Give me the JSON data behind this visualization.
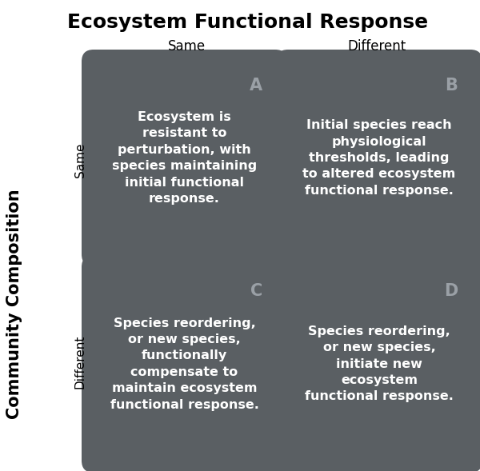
{
  "title": "Ecosystem Functional Response",
  "col_labels": [
    "Same",
    "Different"
  ],
  "row_labels": [
    "Same",
    "Different"
  ],
  "y_axis_label": "Community Composition",
  "cell_labels": [
    "A",
    "B",
    "C",
    "D"
  ],
  "cell_texts": [
    "Ecosystem is\nresistant to\nperturbation, with\nspecies maintaining\ninitial functional\nresponse.",
    "Initial species reach\nphysiological\nthresholds, leading\nto altered ecosystem\nfunctional response.",
    "Species reordering,\nor new species,\nfunctionally\ncompensate to\nmaintain ecosystem\nfunctional response.",
    "Species reordering,\nor new species,\ninitiate new\necosystem\nfunctional response."
  ],
  "cell_color": "#5a5f63",
  "cell_label_color": "#9aa0a6",
  "text_color": "#ffffff",
  "title_color": "#000000",
  "background_color": "#ffffff",
  "title_fontsize": 18,
  "col_label_fontsize": 12,
  "row_label_fontsize": 11,
  "cell_label_fontsize": 15,
  "cell_text_fontsize": 11.5,
  "y_axis_label_fontsize": 15
}
